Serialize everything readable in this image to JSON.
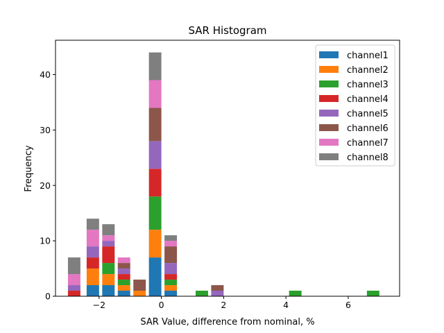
{
  "chart_data": {
    "type": "bar",
    "stacked": true,
    "title": "SAR Histogram",
    "xlabel": "SAR Value, difference from nominal, %",
    "ylabel": "Frequency",
    "xlim": [
      -3.4,
      7.65
    ],
    "ylim": [
      0,
      46.2
    ],
    "bin_width": 0.4,
    "xticks": [
      -2,
      0,
      2,
      4,
      6
    ],
    "xtick_labels": [
      "−2",
      "0",
      "2",
      "4",
      "6"
    ],
    "yticks": [
      0,
      10,
      20,
      30,
      40
    ],
    "ytick_labels": [
      "0",
      "10",
      "20",
      "30",
      "40"
    ],
    "legend_position": "top-right",
    "bins": [
      -2.8,
      -2.2,
      -1.7,
      -1.2,
      -0.7,
      -0.2,
      0.3,
      1.3,
      1.8,
      4.3,
      6.8
    ],
    "series": [
      {
        "name": "channel1",
        "color": "#1f77b4",
        "values": [
          0,
          2,
          2,
          1,
          0,
          7,
          1,
          0,
          0,
          0,
          0
        ]
      },
      {
        "name": "channel2",
        "color": "#ff7f0e",
        "values": [
          0,
          3,
          2,
          1,
          1,
          5,
          1,
          0,
          0,
          0,
          0
        ]
      },
      {
        "name": "channel3",
        "color": "#2ca02c",
        "values": [
          0,
          0,
          2,
          1,
          0,
          6,
          1,
          1,
          0,
          1,
          1
        ]
      },
      {
        "name": "channel4",
        "color": "#d62728",
        "values": [
          1,
          2,
          3,
          1,
          0,
          5,
          1,
          0,
          0,
          0,
          0
        ]
      },
      {
        "name": "channel5",
        "color": "#9467bd",
        "values": [
          1,
          2,
          1,
          1,
          0,
          5,
          2,
          0,
          1,
          0,
          0
        ]
      },
      {
        "name": "channel6",
        "color": "#8c564b",
        "values": [
          0,
          0,
          0,
          1,
          2,
          6,
          3,
          0,
          1,
          0,
          0
        ]
      },
      {
        "name": "channel7",
        "color": "#e377c2",
        "values": [
          2,
          3,
          1,
          1,
          0,
          5,
          1,
          0,
          0,
          0,
          0
        ]
      },
      {
        "name": "channel8",
        "color": "#7f7f7f",
        "values": [
          3,
          2,
          2,
          0,
          0,
          5,
          1,
          0,
          0,
          0,
          0
        ]
      }
    ]
  }
}
